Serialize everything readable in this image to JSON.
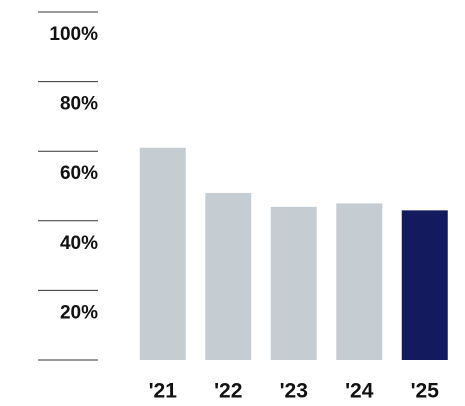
{
  "chart_data": {
    "type": "bar",
    "categories": [
      "'21",
      "'22",
      "'23",
      "'24",
      "'25"
    ],
    "values": [
      61,
      48,
      44,
      45,
      43
    ],
    "colors": [
      "#c5cdd3",
      "#c5cdd3",
      "#c5cdd3",
      "#c5cdd3",
      "#141a5e"
    ],
    "ylim": [
      0,
      100
    ],
    "yticks": [
      {
        "value": 20,
        "label": "20%"
      },
      {
        "value": 40,
        "label": "40%"
      },
      {
        "value": 60,
        "label": "60%"
      },
      {
        "value": 80,
        "label": "80%"
      },
      {
        "value": 100,
        "label": "100%"
      }
    ]
  }
}
